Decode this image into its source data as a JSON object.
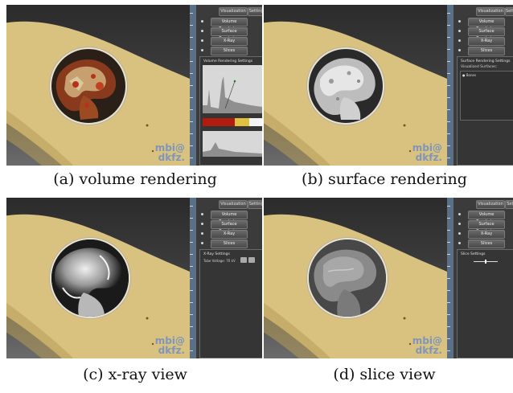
{
  "panels": [
    {
      "caption": "(a) volume rendering",
      "tabs": {
        "visualization": "Visualization",
        "settings": "Settings"
      },
      "menu": [
        "Volume Rendering",
        "Surface Rendering",
        "X-Ray",
        "Slices"
      ],
      "settings_title": "Volume Rendering Settings",
      "watermark": {
        "line1": "mbi@",
        "line2": "dkfz."
      }
    },
    {
      "caption": "(b) surface rendering",
      "tabs": {
        "visualization": "Visualization",
        "settings": "Setting"
      },
      "menu": [
        "Volume Rendering",
        "Surface Rendering",
        "X-Ray",
        "Slices"
      ],
      "settings_title": "Surface Rendering Settings",
      "settings_subtitle": "Visualized Surfaces:",
      "settings_item": "Bones",
      "watermark": {
        "line1": "mbi@",
        "line2": "dkfz."
      }
    },
    {
      "caption": "(c) x-ray view",
      "tabs": {
        "visualization": "Visualization",
        "settings": "Settings"
      },
      "menu": [
        "Volume Rendering",
        "Surface Rendering",
        "X-Ray",
        "Slices"
      ],
      "settings_title": "X-Ray Settings",
      "settings_label": "Tube Voltage: 70 kV",
      "watermark": {
        "line1": "mbi@",
        "line2": "dkfz."
      }
    },
    {
      "caption": "(d) slice view",
      "tabs": {
        "visualization": "Visualization",
        "settings": "Setti"
      },
      "menu": [
        "Volume Rendering",
        "Surface Rendering",
        "X-Ray",
        "Slices"
      ],
      "settings_title": "Slice Settings",
      "watermark": {
        "line1": "mbi@",
        "line2": "dkfz."
      }
    }
  ],
  "colors": {
    "bone": "#d9c27f",
    "bone_shadow": "#b69c57",
    "ui_panel": "#3b3b3b",
    "scale_bar": "#5b6f86",
    "watermark": "#6f8fc4",
    "volume_red": "#b8321a",
    "surface_white": "#e6e6e6"
  }
}
